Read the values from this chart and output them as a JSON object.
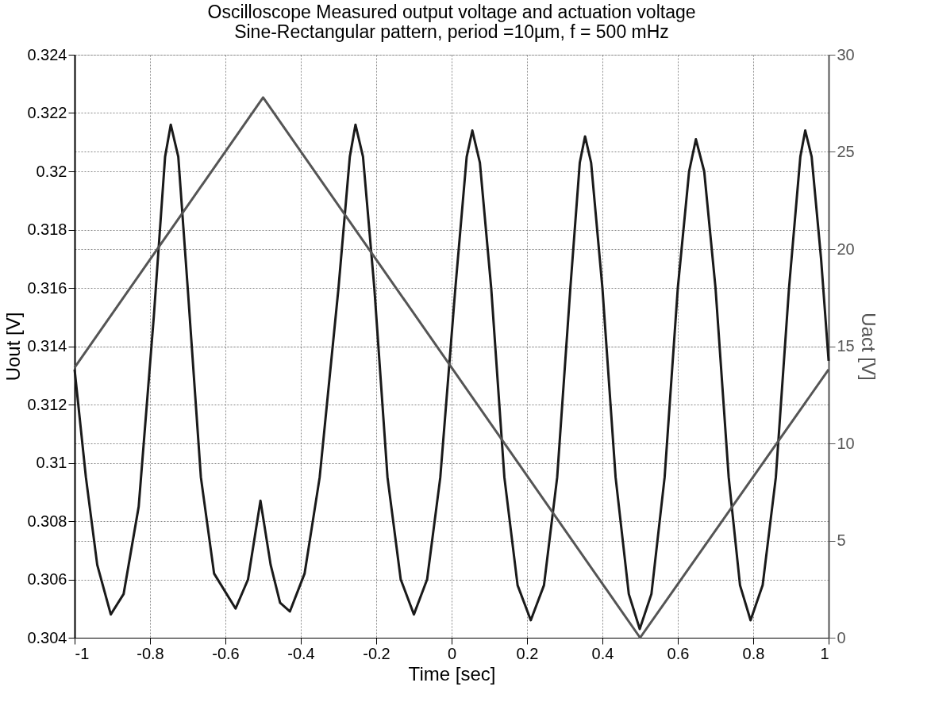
{
  "chart_data": {
    "type": "line",
    "title": "Oscilloscope Measured output voltage and actuation voltage",
    "subtitle": "Sine-Rectangular pattern, period =10µm, f = 500 mHz",
    "xlabel": "Time [sec]",
    "ylabel": "Uout [V]",
    "y2label": "Uact [V]",
    "xlim": [
      -1,
      1
    ],
    "xticks": [
      -1,
      -0.8,
      -0.6,
      -0.4,
      -0.2,
      0,
      0.2,
      0.4,
      0.6,
      0.8,
      1
    ],
    "ylim": [
      0.304,
      0.324
    ],
    "yticks": [
      0.304,
      0.306,
      0.308,
      0.31,
      0.312,
      0.314,
      0.316,
      0.318,
      0.32,
      0.322,
      0.324
    ],
    "y2lim": [
      0,
      30
    ],
    "y2ticks": [
      0,
      5,
      10,
      15,
      20,
      25,
      30
    ],
    "grid": true,
    "line_style": "solid",
    "marker": "none",
    "series": [
      {
        "color": "#1a1a1a",
        "x": [
          -1,
          -0.97,
          -0.94,
          -0.904,
          -0.87,
          -0.83,
          -0.79,
          -0.76,
          -0.745,
          -0.725,
          -0.7,
          -0.665,
          -0.63,
          -0.573,
          -0.54,
          -0.507,
          -0.48,
          -0.455,
          -0.429,
          -0.39,
          -0.35,
          -0.3,
          -0.27,
          -0.255,
          -0.235,
          -0.205,
          -0.17,
          -0.135,
          -0.1,
          -0.065,
          -0.03,
          0.01,
          0.04,
          0.055,
          0.075,
          0.105,
          0.14,
          0.175,
          0.21,
          0.245,
          0.28,
          0.315,
          0.34,
          0.354,
          0.37,
          0.4,
          0.435,
          0.47,
          0.499,
          0.53,
          0.565,
          0.6,
          0.63,
          0.648,
          0.67,
          0.7,
          0.735,
          0.765,
          0.793,
          0.825,
          0.86,
          0.895,
          0.925,
          0.938,
          0.955,
          0.98,
          1.0
        ],
        "values": [
          0.3132,
          0.3095,
          0.3065,
          0.3048,
          0.3055,
          0.3085,
          0.315,
          0.3205,
          0.3216,
          0.3205,
          0.316,
          0.3095,
          0.3062,
          0.305,
          0.306,
          0.3087,
          0.3065,
          0.3052,
          0.3049,
          0.3062,
          0.3095,
          0.316,
          0.3205,
          0.3216,
          0.3205,
          0.316,
          0.3095,
          0.306,
          0.3048,
          0.306,
          0.3095,
          0.316,
          0.3205,
          0.3214,
          0.3203,
          0.316,
          0.3095,
          0.3058,
          0.3046,
          0.3058,
          0.3095,
          0.316,
          0.3203,
          0.3212,
          0.3203,
          0.316,
          0.3095,
          0.3055,
          0.3043,
          0.3055,
          0.3095,
          0.316,
          0.32,
          0.3211,
          0.32,
          0.316,
          0.3095,
          0.3058,
          0.3046,
          0.3058,
          0.3095,
          0.316,
          0.3205,
          0.3214,
          0.3205,
          0.317,
          0.3135
        ]
      },
      {
        "color": "#555555",
        "axis": "y2",
        "x": [
          -1,
          -0.5,
          0.5,
          1
        ],
        "values": [
          13.9,
          27.8,
          0,
          13.8
        ]
      }
    ]
  }
}
